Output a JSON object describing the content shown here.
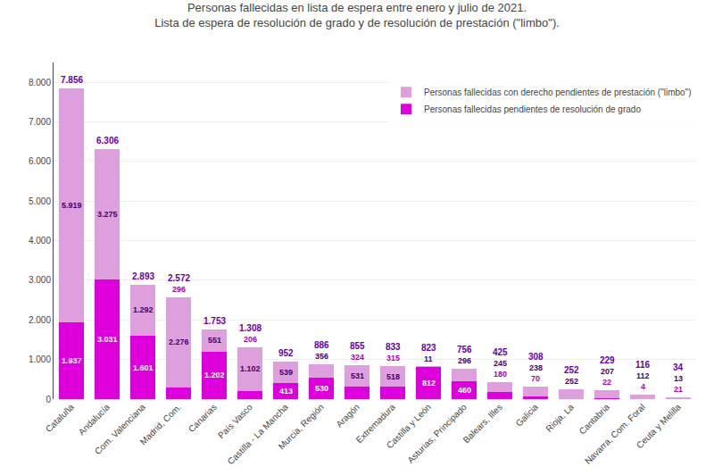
{
  "chart_data": {
    "type": "bar",
    "title": "Personas fallecidas en lista de espera entre enero y julio de 2021.",
    "subtitle": "Lista de espera de resolución de grado y de resolución de prestación (\"limbo\").",
    "categories": [
      "Cataluña",
      "Andalucía",
      "Com. Valenciana",
      "Madrid, Com.",
      "Canarias",
      "País Vasco",
      "Castilla - La Mancha",
      "Murcia, Región",
      "Aragón",
      "Extremadura",
      "Castilla y León",
      "Asturias, Principado",
      "Balears, Illes",
      "Galicia",
      "Rioja, La",
      "Cantabria",
      "Navarra, Com. Foral",
      "Ceuta y Melilla"
    ],
    "series": [
      {
        "name": "Personas fallecidas pendientes de resolución de grado",
        "color": "#dd00dd",
        "values": [
          1937,
          3031,
          1601,
          296,
          1202,
          206,
          413,
          530,
          324,
          315,
          812,
          460,
          180,
          70,
          0,
          22,
          4,
          21
        ],
        "value_labels": [
          "1.937",
          "3.031",
          "1.601",
          "296",
          "1.202",
          "206",
          "413",
          "530",
          "324",
          "315",
          "812",
          "460",
          "180",
          "70",
          null,
          "22",
          "4",
          "21"
        ]
      },
      {
        "name": "Personas fallecidas con derecho pendientes de prestación (\"limbo\")",
        "color": "#dda0dd",
        "values": [
          5919,
          3275,
          1292,
          2276,
          551,
          1102,
          539,
          356,
          531,
          518,
          11,
          296,
          245,
          238,
          252,
          207,
          112,
          13
        ],
        "value_labels": [
          "5.919",
          "3.275",
          "1.292",
          "2.276",
          "551",
          "1.102",
          "539",
          "356",
          "531",
          "518",
          "11",
          "296",
          "245",
          "238",
          "252",
          "207",
          "112",
          "13"
        ]
      }
    ],
    "totals": [
      7856,
      6306,
      2893,
      2572,
      1753,
      1308,
      952,
      886,
      855,
      833,
      823,
      756,
      425,
      308,
      252,
      229,
      116,
      34
    ],
    "total_labels": [
      "7.856",
      "6.306",
      "2.893",
      "2.572",
      "1.753",
      "1.308",
      "952",
      "886",
      "855",
      "833",
      "823",
      "756",
      "425",
      "308",
      "252",
      "229",
      "116",
      "34"
    ],
    "stacked": true,
    "data_labels": true,
    "ylim": [
      0,
      8500
    ],
    "yticks": [
      0,
      {
        "value": 1000,
        "label": "1.000"
      },
      {
        "value": 2000,
        "label": "2.000"
      },
      {
        "value": 3000,
        "label": "3.000"
      },
      {
        "value": 4000,
        "label": "4.000"
      },
      {
        "value": 5000,
        "label": "5.000"
      },
      {
        "value": 6000,
        "label": "6.000"
      },
      {
        "value": 7000,
        "label": "7.000"
      },
      {
        "value": 8000,
        "label": "8.000"
      }
    ],
    "grid": true,
    "legend": "upper right"
  }
}
